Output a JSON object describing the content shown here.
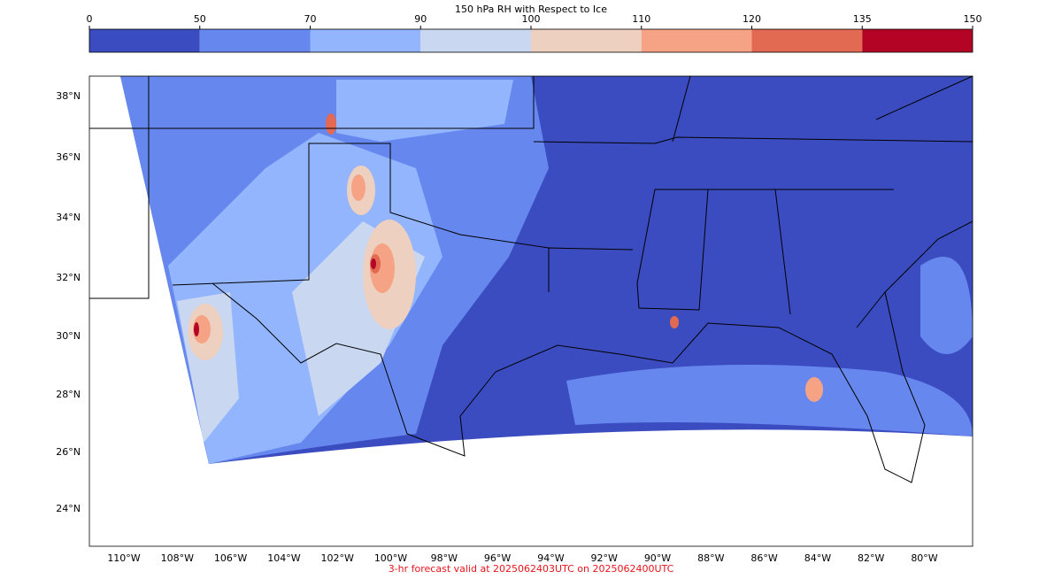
{
  "colorbar": {
    "title": "150 hPa RH with Respect to Ice",
    "levels": [
      0,
      50,
      70,
      90,
      100,
      110,
      120,
      135,
      150
    ],
    "colors": [
      "#3b4cc0",
      "#6688ee",
      "#93b5fe",
      "#c9d7f0",
      "#eed0c0",
      "#f6a385",
      "#e26952",
      "#b40426"
    ]
  },
  "map": {
    "lat_labels": [
      "38°N",
      "36°N",
      "34°N",
      "32°N",
      "30°N",
      "28°N",
      "26°N",
      "24°N"
    ],
    "lon_labels": [
      "110°W",
      "108°W",
      "106°W",
      "104°W",
      "102°W",
      "100°W",
      "98°W",
      "96°W",
      "94°W",
      "92°W",
      "90°W",
      "88°W",
      "86°W",
      "84°W",
      "82°W",
      "80°W"
    ]
  },
  "footer": "3-hr forecast valid at 2025062403UTC on 2025062400UTC"
}
